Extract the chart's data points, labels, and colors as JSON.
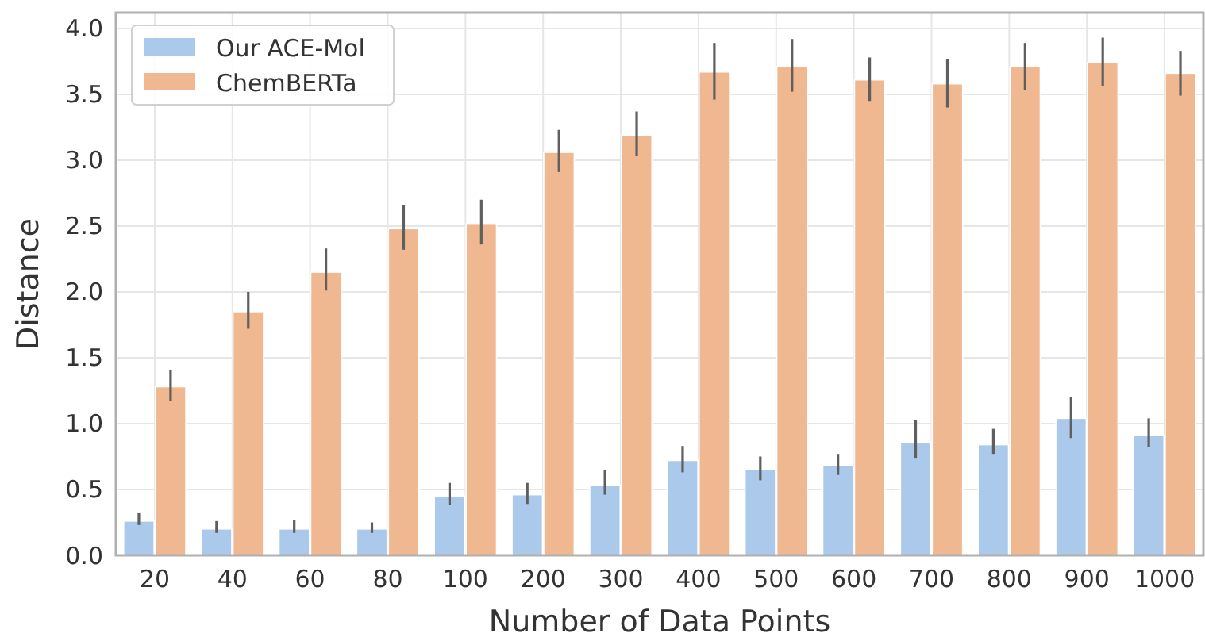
{
  "chart_data": {
    "type": "bar",
    "xlabel": "Number of Data Points",
    "ylabel": "Distance",
    "categories": [
      "20",
      "40",
      "60",
      "80",
      "100",
      "200",
      "300",
      "400",
      "500",
      "600",
      "700",
      "800",
      "900",
      "1000"
    ],
    "series": [
      {
        "name": "Our ACE-Mol",
        "color": "#abc9ea",
        "values": [
          0.26,
          0.2,
          0.2,
          0.2,
          0.45,
          0.46,
          0.53,
          0.72,
          0.65,
          0.68,
          0.86,
          0.84,
          1.04,
          0.91
        ],
        "errors": [
          [
            0.23,
            0.32
          ],
          [
            0.17,
            0.26
          ],
          [
            0.17,
            0.27
          ],
          [
            0.17,
            0.25
          ],
          [
            0.38,
            0.55
          ],
          [
            0.39,
            0.55
          ],
          [
            0.46,
            0.65
          ],
          [
            0.63,
            0.83
          ],
          [
            0.57,
            0.75
          ],
          [
            0.61,
            0.77
          ],
          [
            0.74,
            1.03
          ],
          [
            0.77,
            0.96
          ],
          [
            0.89,
            1.2
          ],
          [
            0.82,
            1.04
          ]
        ]
      },
      {
        "name": "ChemBERTa",
        "color": "#f0b891",
        "values": [
          1.28,
          1.85,
          2.15,
          2.48,
          2.52,
          3.06,
          3.19,
          3.67,
          3.71,
          3.61,
          3.58,
          3.71,
          3.74,
          3.66
        ],
        "errors": [
          [
            1.17,
            1.41
          ],
          [
            1.72,
            2.0
          ],
          [
            2.01,
            2.33
          ],
          [
            2.32,
            2.66
          ],
          [
            2.36,
            2.7
          ],
          [
            2.91,
            3.23
          ],
          [
            3.03,
            3.37
          ],
          [
            3.46,
            3.89
          ],
          [
            3.52,
            3.92
          ],
          [
            3.45,
            3.78
          ],
          [
            3.4,
            3.77
          ],
          [
            3.53,
            3.89
          ],
          [
            3.56,
            3.93
          ],
          [
            3.49,
            3.83
          ]
        ]
      }
    ],
    "ylim": [
      0,
      4.12
    ],
    "yticks": [
      {
        "value": 0,
        "label": "0.0"
      },
      {
        "value": 0.5,
        "label": "0.5"
      },
      {
        "value": 1,
        "label": "1.0"
      },
      {
        "value": 1.5,
        "label": "1.5"
      },
      {
        "value": 2,
        "label": "2.0"
      },
      {
        "value": 2.5,
        "label": "2.5"
      },
      {
        "value": 3,
        "label": "3.0"
      },
      {
        "value": 3.5,
        "label": "3.5"
      },
      {
        "value": 4,
        "label": "4.0"
      }
    ],
    "grid": true,
    "legend": "top left"
  }
}
